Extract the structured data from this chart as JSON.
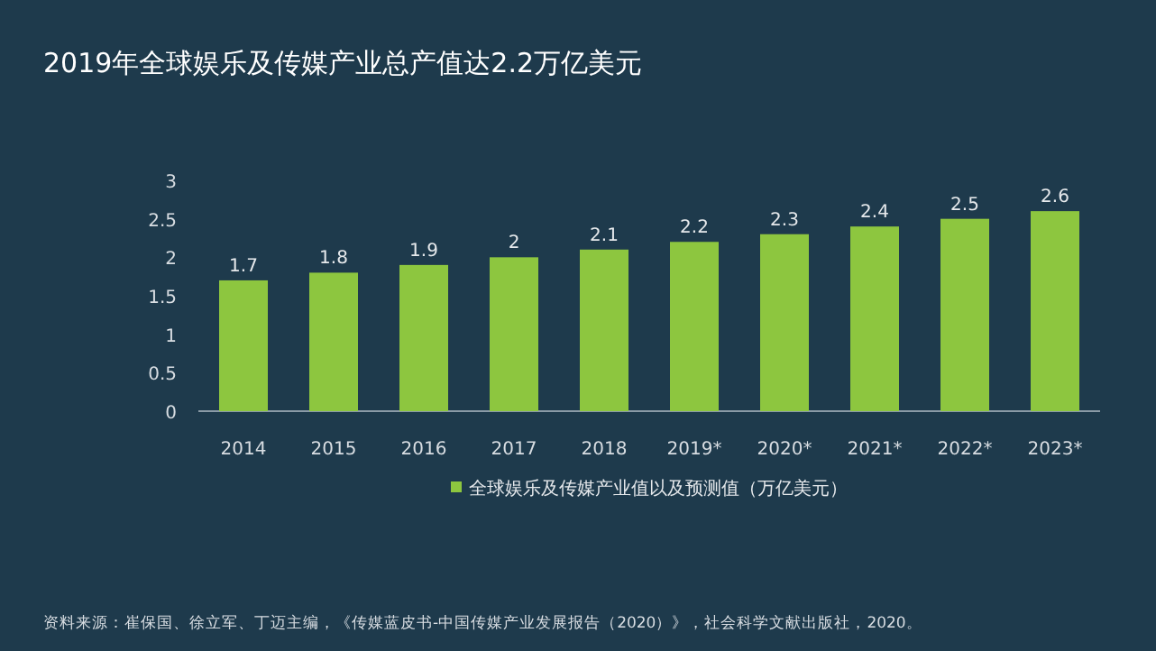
{
  "chart_data": {
    "type": "bar",
    "title": "2019年全球娱乐及传媒产业总产值达2.2万亿美元",
    "categories": [
      "2014",
      "2015",
      "2016",
      "2017",
      "2018",
      "2019*",
      "2020*",
      "2021*",
      "2022*",
      "2023*"
    ],
    "series": [
      {
        "name": "全球娱乐及传媒产业值以及预测值（万亿美元）",
        "color": "#8dc63f",
        "values": [
          1.7,
          1.8,
          1.9,
          2,
          2.1,
          2.2,
          2.3,
          2.4,
          2.5,
          2.6
        ]
      }
    ],
    "ylim": [
      0,
      3
    ],
    "yticks": [
      0,
      0.5,
      1,
      1.5,
      2,
      2.5,
      3
    ],
    "data_labels": true,
    "legend": "bottom",
    "grid": false,
    "annotations": [
      "资料来源：崔保国、徐立军、丁迈主编，《传媒蓝皮书-中国传媒产业发展报告（2020）》，社会科学文献出版社，2020。"
    ]
  }
}
